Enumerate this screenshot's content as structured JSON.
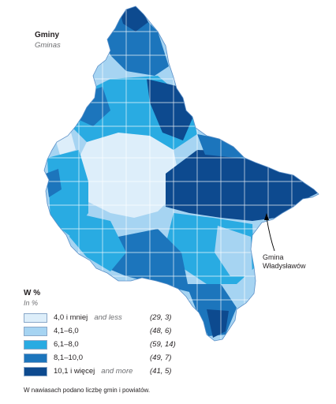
{
  "map": {
    "title": "Gminy",
    "subtitle": "Gminas"
  },
  "legend": {
    "title": "W %",
    "subtitle": "In %",
    "classes": [
      {
        "label": "4,0 i mniej",
        "label_en": "and less",
        "count": "(29, 3)",
        "color": "#ddeefa"
      },
      {
        "label": "4,1–6,0",
        "label_en": "",
        "count": "(48, 6)",
        "color": "#a6d4f2"
      },
      {
        "label": "6,1–8,0",
        "label_en": "",
        "count": "(59, 14)",
        "color": "#29abe2"
      },
      {
        "label": "8,1–10,0",
        "label_en": "",
        "count": "(49, 7)",
        "color": "#1c75bc"
      },
      {
        "label": "10,1 i więcej",
        "label_en": "and more",
        "count": "(41, 5)",
        "color": "#0d4a8f"
      }
    ]
  },
  "callout": {
    "line1": "Gmina",
    "line2": "Władysławów"
  },
  "note": "W nawiasach podano liczbę gmin i powiatów."
}
